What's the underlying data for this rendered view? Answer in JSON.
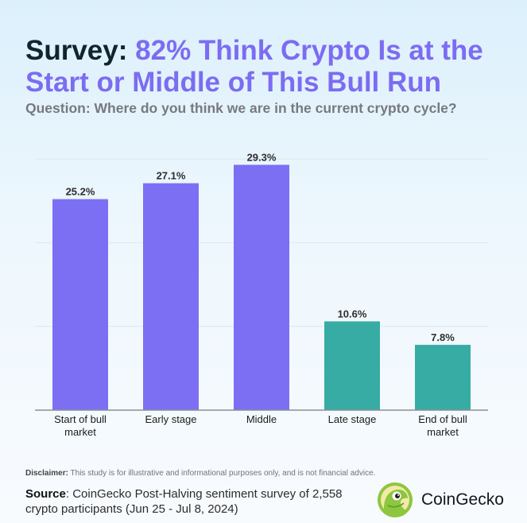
{
  "title": {
    "prefix": "Survey:",
    "highlight": "82% Think Crypto Is at the Start or Middle of This Bull Run"
  },
  "subtitle": "Question: Where do you think we are in the current crypto cycle?",
  "chart_data": {
    "type": "bar",
    "categories": [
      "Start of bull market",
      "Early stage",
      "Middle",
      "Late stage",
      "End of bull market"
    ],
    "category_lines": [
      [
        "Start of bull",
        "market"
      ],
      [
        "Early stage"
      ],
      [
        "Middle"
      ],
      [
        "Late stage"
      ],
      [
        "End of bull",
        "market"
      ]
    ],
    "values": [
      25.2,
      27.1,
      29.3,
      10.6,
      7.8
    ],
    "value_labels": [
      "25.2%",
      "27.1%",
      "29.3%",
      "10.6%",
      "7.8%"
    ],
    "bar_colors": [
      "#7c6ff4",
      "#7c6ff4",
      "#7c6ff4",
      "#36aca4",
      "#36aca4"
    ],
    "ylim": [
      0,
      30
    ],
    "y_gridlines": [
      10,
      20,
      30
    ],
    "grid": true,
    "legend": "none",
    "xlabel": "",
    "ylabel": ""
  },
  "footer": {
    "disclaimer_label": "Disclaimer:",
    "disclaimer_text": "This study is for illustrative and informational purposes only, and is not financial advice.",
    "source_label": "Source",
    "source_text": ": CoinGecko Post-Halving sentiment survey of 2,558 crypto participants (Jun 25 - Jul 8, 2024)"
  },
  "logo": {
    "icon": "gecko-icon",
    "text": "CoinGecko"
  }
}
